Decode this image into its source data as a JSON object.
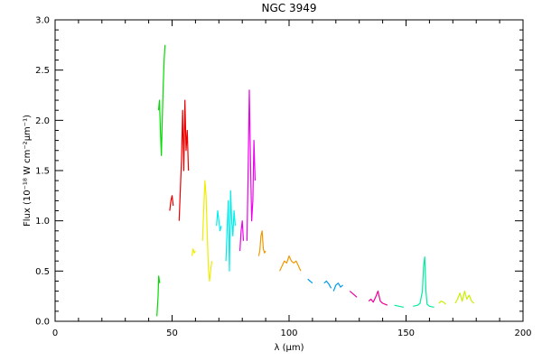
{
  "chart_data": {
    "type": "line",
    "title": "NGC 3949",
    "xlabel": "λ (μm)",
    "ylabel": "Flux (10⁻¹⁸ W cm⁻²μm⁻¹)",
    "xlim": [
      0,
      200
    ],
    "ylim": [
      0,
      3.0
    ],
    "xticks": [
      "0",
      "50",
      "100",
      "150",
      "200"
    ],
    "yticks": [
      "0.0",
      "0.5",
      "1.0",
      "1.5",
      "2.0",
      "2.5",
      "3.0"
    ],
    "grid": false,
    "series": [
      {
        "color": "#00dd00",
        "x": [
          43.5,
          44.0,
          44.3,
          44.7
        ],
        "y": [
          0.05,
          0.25,
          0.45,
          0.38
        ]
      },
      {
        "color": "#00dd00",
        "x": [
          44.2,
          44.6,
          45.0,
          45.4,
          45.8,
          46.2,
          46.6,
          47.0
        ],
        "y": [
          2.1,
          2.2,
          1.9,
          1.65,
          2.0,
          2.35,
          2.6,
          2.75
        ]
      },
      {
        "color": "#ee0000",
        "x": [
          49.0,
          49.5,
          50.0,
          50.5
        ],
        "y": [
          1.1,
          1.2,
          1.25,
          1.15
        ]
      },
      {
        "color": "#ee0000",
        "x": [
          53.0,
          53.5,
          54.0,
          54.5,
          55.0,
          55.5,
          56.0,
          56.5,
          57.0
        ],
        "y": [
          1.0,
          1.3,
          1.6,
          2.1,
          1.5,
          2.2,
          1.7,
          1.9,
          1.5
        ]
      },
      {
        "color": "#eeee00",
        "x": [
          58.5,
          59.0,
          59.5,
          60.0
        ],
        "y": [
          0.65,
          0.72,
          0.68,
          0.7
        ]
      },
      {
        "color": "#eeee00",
        "x": [
          63.0,
          63.5,
          64.0,
          64.5,
          65.0,
          65.5,
          66.0,
          66.5,
          67.0
        ],
        "y": [
          0.8,
          1.1,
          1.4,
          1.25,
          0.9,
          0.55,
          0.4,
          0.5,
          0.6
        ]
      },
      {
        "color": "#00eeee",
        "x": [
          69.0,
          69.5,
          70.0,
          70.5,
          71.0
        ],
        "y": [
          0.95,
          1.1,
          1.0,
          0.9,
          0.95
        ]
      },
      {
        "color": "#00eeee",
        "x": [
          73.0,
          73.5,
          74.0,
          74.5,
          75.0,
          75.5,
          76.0,
          76.5,
          77.0
        ],
        "y": [
          0.6,
          0.9,
          1.2,
          0.5,
          1.3,
          1.0,
          0.85,
          1.1,
          0.95
        ]
      },
      {
        "color": "#ee00ee",
        "x": [
          79.0,
          79.5,
          80.0,
          80.5
        ],
        "y": [
          0.7,
          0.9,
          1.0,
          0.8
        ]
      },
      {
        "color": "#ee00ee",
        "x": [
          82.0,
          82.5,
          83.0,
          83.5,
          84.0,
          84.5,
          85.0,
          85.5
        ],
        "y": [
          0.8,
          1.5,
          2.3,
          1.6,
          1.0,
          1.2,
          1.8,
          1.4
        ]
      },
      {
        "color": "#ee9900",
        "x": [
          87.0,
          87.5,
          88.0,
          88.5,
          89.0,
          89.5,
          90.0
        ],
        "y": [
          0.65,
          0.7,
          0.85,
          0.9,
          0.72,
          0.68,
          0.7
        ]
      },
      {
        "color": "#ee9900",
        "x": [
          96.0,
          97.0,
          98.0,
          99.0,
          100.0,
          101.0,
          102.0,
          103.0,
          104.0,
          105.0
        ],
        "y": [
          0.5,
          0.55,
          0.6,
          0.58,
          0.65,
          0.6,
          0.58,
          0.6,
          0.55,
          0.5
        ]
      },
      {
        "color": "#0099ee",
        "x": [
          108.0,
          109.0,
          110.0
        ],
        "y": [
          0.42,
          0.4,
          0.38
        ]
      },
      {
        "color": "#0099ee",
        "x": [
          115.0,
          116.0,
          117.0,
          118.0
        ],
        "y": [
          0.38,
          0.4,
          0.37,
          0.33
        ]
      },
      {
        "color": "#0099ee",
        "x": [
          119.0,
          120.0,
          121.0,
          122.0,
          123.0
        ],
        "y": [
          0.3,
          0.36,
          0.38,
          0.34,
          0.36
        ]
      },
      {
        "color": "#ee0099",
        "x": [
          126.0,
          127.0,
          128.0,
          129.0
        ],
        "y": [
          0.3,
          0.28,
          0.26,
          0.24
        ]
      },
      {
        "color": "#ee0099",
        "x": [
          134.0,
          135.0,
          136.0,
          137.0,
          138.0,
          139.0,
          140.0,
          141.0,
          142.0
        ],
        "y": [
          0.2,
          0.22,
          0.19,
          0.24,
          0.3,
          0.2,
          0.18,
          0.17,
          0.16
        ]
      },
      {
        "color": "#00ee99",
        "x": [
          145.0,
          147.0,
          149.0
        ],
        "y": [
          0.16,
          0.15,
          0.14
        ]
      },
      {
        "color": "#00ee99",
        "x": [
          153.0,
          155.0,
          156.0,
          157.0,
          157.5,
          158.0,
          158.5,
          159.0,
          160.0,
          162.0
        ],
        "y": [
          0.15,
          0.16,
          0.18,
          0.3,
          0.55,
          0.64,
          0.3,
          0.17,
          0.15,
          0.14
        ]
      },
      {
        "color": "#ccee00",
        "x": [
          164.0,
          165.0,
          166.0,
          167.0
        ],
        "y": [
          0.18,
          0.2,
          0.19,
          0.17
        ]
      },
      {
        "color": "#ccee00",
        "x": [
          171.0,
          172.0,
          173.0,
          174.0,
          175.0,
          176.0,
          177.0,
          178.0,
          179.0
        ],
        "y": [
          0.18,
          0.22,
          0.28,
          0.2,
          0.3,
          0.22,
          0.26,
          0.2,
          0.18
        ]
      }
    ]
  }
}
